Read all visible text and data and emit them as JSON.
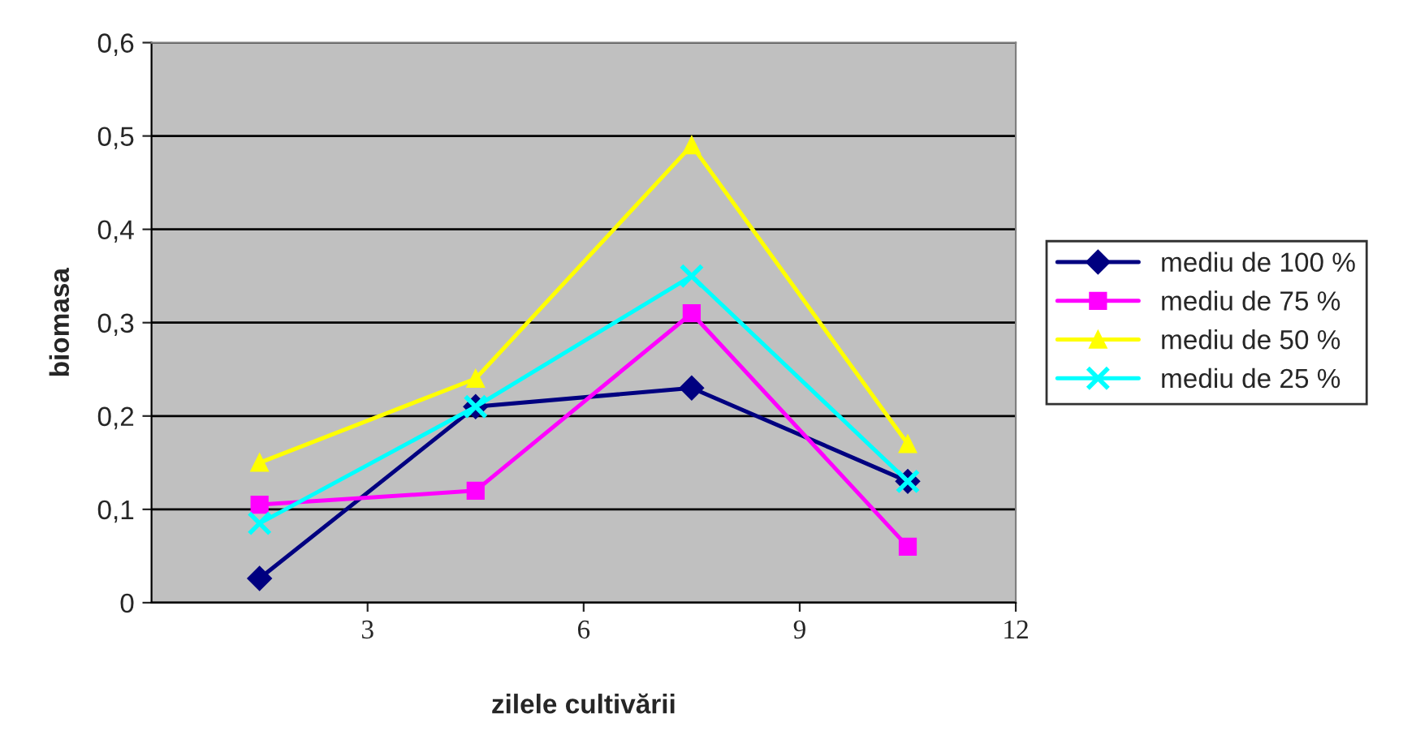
{
  "chart_data": {
    "type": "line",
    "xlabel": "zilele cultivării",
    "ylabel": "biomasa",
    "x": [
      1.5,
      4.5,
      7.5,
      10.5
    ],
    "xlim": [
      0,
      12
    ],
    "xticks": [
      3,
      6,
      9,
      12
    ],
    "ylim": [
      0,
      0.6
    ],
    "yticks": [
      {
        "value": 0,
        "label": "0"
      },
      {
        "value": 0.1,
        "label": "0,1"
      },
      {
        "value": 0.2,
        "label": "0,2"
      },
      {
        "value": 0.3,
        "label": "0,3"
      },
      {
        "value": 0.4,
        "label": "0,4"
      },
      {
        "value": 0.5,
        "label": "0,5"
      },
      {
        "value": 0.6,
        "label": "0,6"
      }
    ],
    "grid": "y",
    "legend": "right",
    "series": [
      {
        "name": "mediu de 100 %",
        "color": "#000080",
        "marker": "diamond",
        "values": [
          0.026,
          0.21,
          0.23,
          0.13
        ]
      },
      {
        "name": "mediu de 75 %",
        "color": "#ff00ff",
        "marker": "square",
        "values": [
          0.105,
          0.12,
          0.31,
          0.06
        ]
      },
      {
        "name": "mediu de 50 %",
        "color": "#ffff00",
        "marker": "triangle",
        "values": [
          0.15,
          0.24,
          0.49,
          0.17
        ]
      },
      {
        "name": "mediu de 25 %",
        "color": "#00ffff",
        "marker": "cross",
        "values": [
          0.085,
          0.21,
          0.35,
          0.13
        ]
      }
    ]
  }
}
